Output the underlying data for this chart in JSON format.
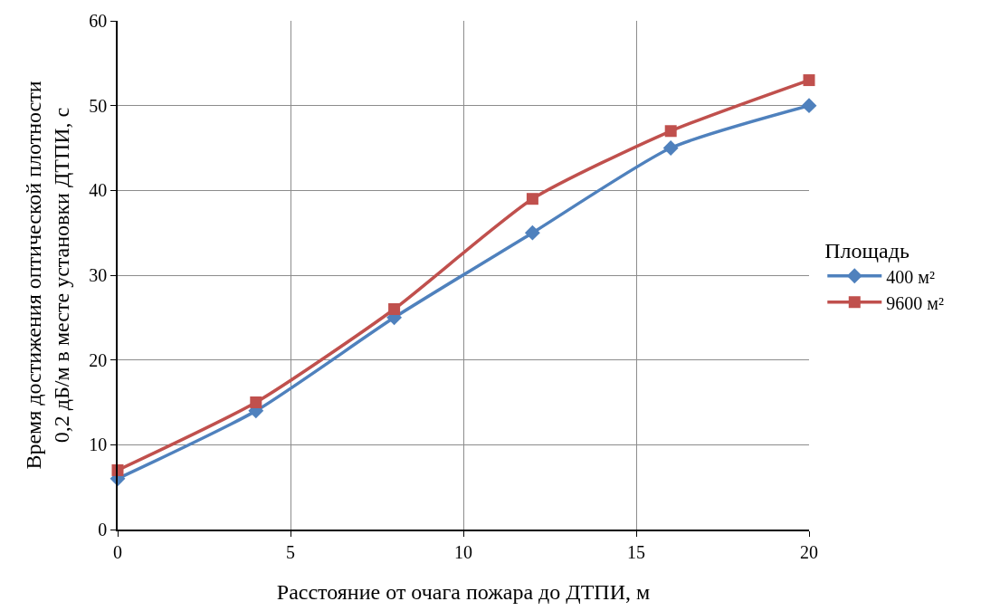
{
  "chart_data": {
    "type": "line",
    "xlabel": "Расстояние от очага пожара до ДТПИ, м",
    "ylabel": "Время достижения оптической плотности\n0,2 дБ/м в месте установки ДТПИ, с",
    "legend_title": "Площадь",
    "x": [
      0,
      4,
      8,
      12,
      16,
      20
    ],
    "series": [
      {
        "name": "400 м²",
        "color": "#4f81bd",
        "marker": "diamond",
        "values": [
          6,
          14,
          25,
          35,
          45,
          50
        ]
      },
      {
        "name": "9600 м²",
        "color": "#c0504d",
        "marker": "square",
        "values": [
          7,
          15,
          26,
          39,
          47,
          53
        ]
      }
    ],
    "xlim": [
      0,
      20
    ],
    "xticks": [
      0,
      5,
      10,
      15,
      20
    ],
    "ylim": [
      0,
      60
    ],
    "yticks": [
      0,
      10,
      20,
      30,
      40,
      50,
      60
    ],
    "grid": true,
    "legend": "right",
    "line_style": "solid"
  }
}
